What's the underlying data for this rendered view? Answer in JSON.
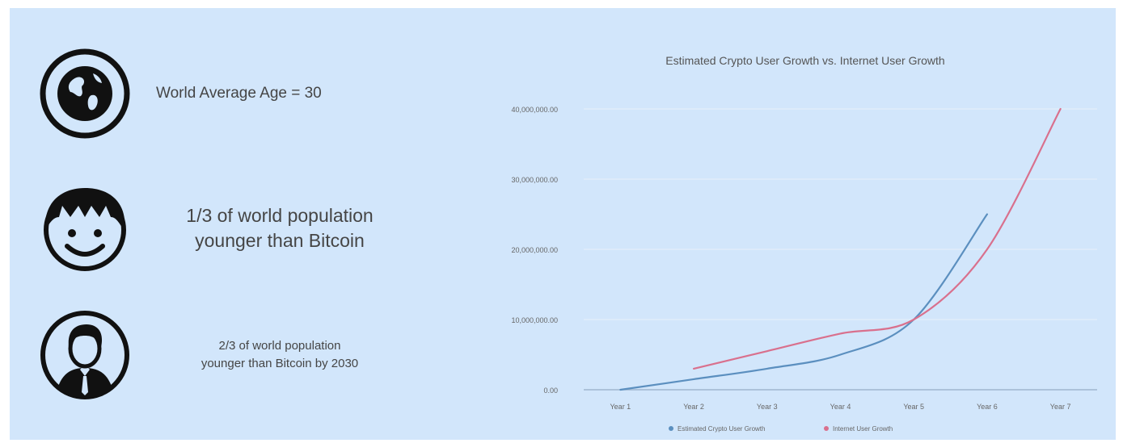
{
  "stats": [
    {
      "icon": "globe-icon",
      "text": "World Average Age = 30"
    },
    {
      "icon": "smiling-child-icon",
      "text_lines": [
        "1/3 of world population",
        "younger than Bitcoin"
      ]
    },
    {
      "icon": "person-in-suit-icon",
      "text_lines": [
        "2/3 of world population",
        "younger than Bitcoin by 2030"
      ]
    }
  ],
  "colors": {
    "background": "#d2e6fb",
    "crypto_series": "#5b8fbf",
    "internet_series": "#d9708d",
    "text": "#454545"
  },
  "chart_data": {
    "type": "line",
    "title": "Estimated Crypto User Growth vs. Internet User Growth",
    "categories": [
      "Year 1",
      "Year 2",
      "Year 3",
      "Year 4",
      "Year 5",
      "Year 6",
      "Year 7"
    ],
    "y_ticks": [
      "0.00",
      "10,000,000.00",
      "20,000,000.00",
      "30,000,000.00",
      "40,000,000.00"
    ],
    "ylim": [
      0,
      40000000
    ],
    "grid": true,
    "legend_position": "bottom",
    "series": [
      {
        "name": "Estimated Crypto User Growth",
        "values": [
          0,
          1500000,
          3000000,
          5000000,
          10000000,
          25000000,
          null
        ]
      },
      {
        "name": "Internet User Growth",
        "values": [
          null,
          3000000,
          5500000,
          8000000,
          10000000,
          20000000,
          40000000
        ]
      }
    ]
  }
}
